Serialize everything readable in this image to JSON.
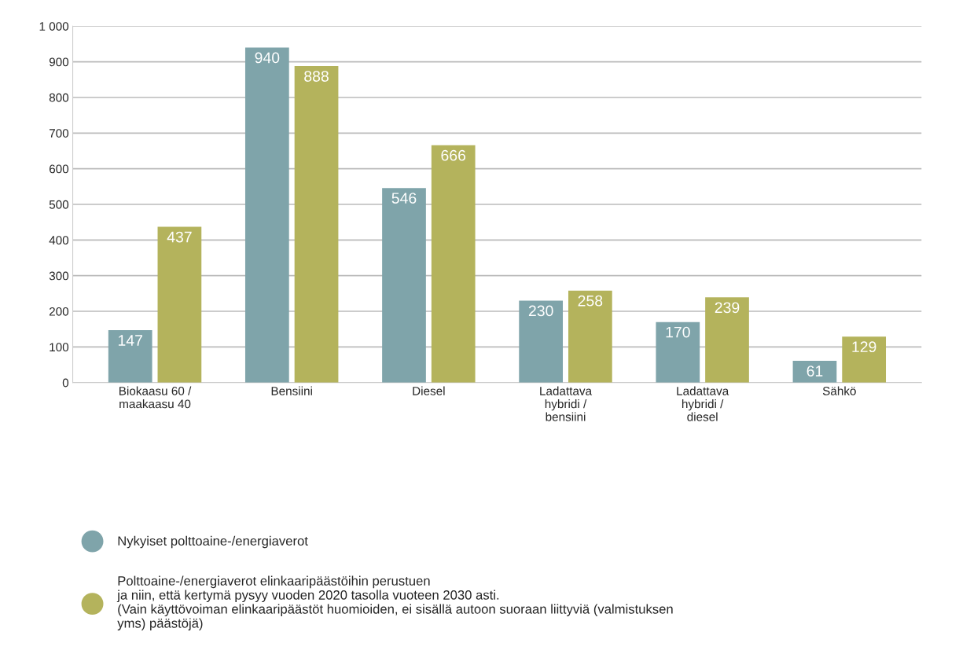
{
  "chart_data": {
    "type": "bar",
    "categories": [
      "Biokaasu 60 /\nmaakaasu 40",
      "Bensiini",
      "Diesel",
      "Ladattava\nhybridi /\nbensiini",
      "Ladattava\nhybridi /\ndiesel",
      "Sähkö"
    ],
    "series": [
      {
        "name": "Nykyiset polttoaine-/energiaverot",
        "color": "#7fa4aa",
        "values": [
          147,
          940,
          546,
          230,
          170,
          61
        ]
      },
      {
        "name": "Polttoaine-/energiaverot elinkaaripäästöihin perustuen\nja niin, että kertymä pysyy vuoden 2020 tasolla vuoteen 2030 asti.\n(Vain käyttövoiman elinkaaripäästöt huomioiden, ei sisällä autoon suoraan liittyviä (valmistuksen\nyms) päästöjä)",
        "color": "#b4b35c",
        "values": [
          437,
          888,
          666,
          258,
          239,
          129
        ]
      }
    ],
    "ylim": [
      0,
      1000
    ],
    "yticks": [
      0,
      100,
      200,
      300,
      400,
      500,
      600,
      700,
      800,
      900,
      {
        "value": 1000,
        "label": "1 000"
      }
    ],
    "grid": "y",
    "data_labels": true,
    "legend": "bottom"
  }
}
